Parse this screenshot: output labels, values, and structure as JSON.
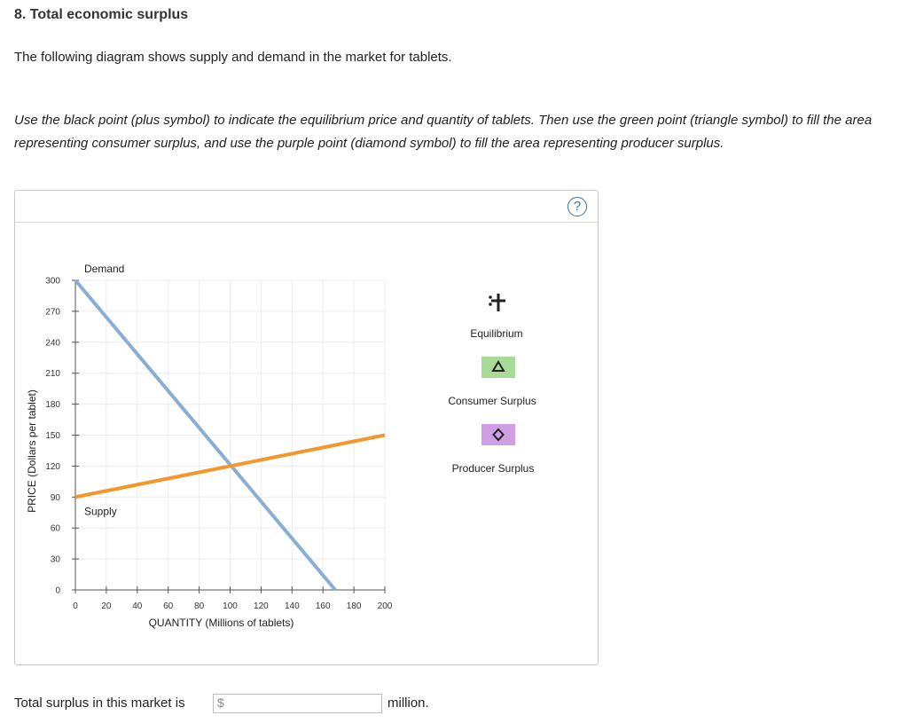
{
  "question": {
    "title": "8. Total economic surplus",
    "intro": "The following diagram shows supply and demand in the market for tablets.",
    "instructions": "Use the black point (plus symbol) to indicate the equilibrium price and quantity of tablets. Then use the green point (triangle symbol) to fill the area representing consumer surplus, and use the purple point (diamond symbol) to fill the area representing producer surplus."
  },
  "help": {
    "label": "?"
  },
  "chart_data": {
    "type": "line",
    "xlabel": "QUANTITY (Millions of tablets)",
    "ylabel": "PRICE (Dollars per tablet)",
    "xlim": [
      0,
      200
    ],
    "ylim": [
      0,
      300
    ],
    "x_ticks": [
      0,
      20,
      40,
      60,
      80,
      100,
      120,
      140,
      160,
      180,
      200
    ],
    "y_ticks": [
      0,
      30,
      60,
      90,
      120,
      150,
      180,
      210,
      240,
      270,
      300
    ],
    "grid": true,
    "series": [
      {
        "name": "Demand",
        "color": "#8aaed3",
        "x": [
          0,
          168
        ],
        "y": [
          300,
          0
        ]
      },
      {
        "name": "Supply",
        "color": "#f5962c",
        "x": [
          0,
          200
        ],
        "y": [
          90,
          150
        ]
      }
    ]
  },
  "palette": {
    "equilibrium": {
      "label": "Equilibrium",
      "icon": "plus-icon",
      "color": "#222222"
    },
    "consumer_surplus": {
      "label": "Consumer Surplus",
      "icon": "triangle-icon",
      "color": "#a8dc96"
    },
    "producer_surplus": {
      "label": "Producer Surplus",
      "icon": "diamond-icon",
      "color": "#cf9fe4"
    }
  },
  "answer": {
    "prefix": "Total surplus in this market is",
    "currency": "$",
    "value": "",
    "unit": "million."
  }
}
